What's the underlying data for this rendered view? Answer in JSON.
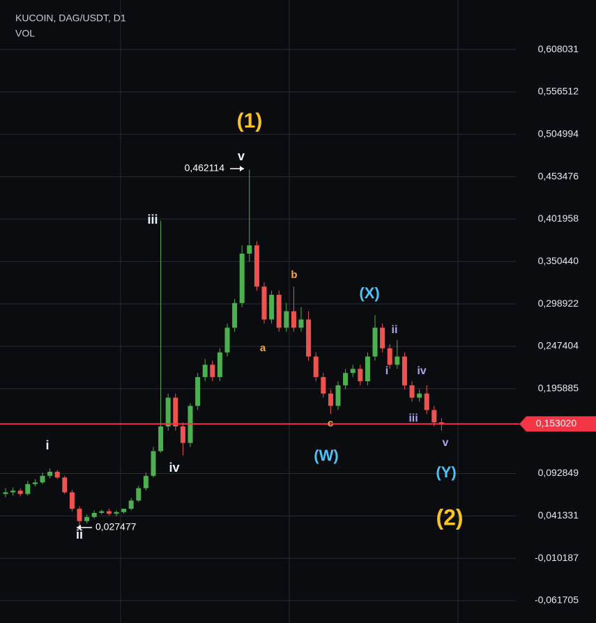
{
  "chart_data": {
    "type": "candlestick",
    "title": "KUCOIN, DAG/USDT, D1",
    "subtitle": "VOL",
    "open": [
      0.068,
      0.07,
      0.072,
      0.068,
      0.08,
      0.082,
      0.09,
      0.095,
      0.088,
      0.07,
      0.05,
      0.035,
      0.04,
      0.045,
      0.047,
      0.044,
      0.046,
      0.05,
      0.06,
      0.075,
      0.09,
      0.12,
      0.15,
      0.185,
      0.15,
      0.13,
      0.175,
      0.21,
      0.225,
      0.21,
      0.24,
      0.27,
      0.3,
      0.36,
      0.37,
      0.32,
      0.28,
      0.31,
      0.27,
      0.29,
      0.27,
      0.28,
      0.235,
      0.21,
      0.19,
      0.175,
      0.2,
      0.215,
      0.22,
      0.205,
      0.235,
      0.27,
      0.245,
      0.225,
      0.235,
      0.2,
      0.185,
      0.19,
      0.17,
      0.155
    ],
    "high": [
      0.075,
      0.076,
      0.075,
      0.084,
      0.086,
      0.094,
      0.099,
      0.097,
      0.09,
      0.073,
      0.053,
      0.043,
      0.048,
      0.049,
      0.05,
      0.048,
      0.05,
      0.063,
      0.078,
      0.094,
      0.125,
      0.4,
      0.19,
      0.19,
      0.155,
      0.178,
      0.215,
      0.232,
      0.23,
      0.245,
      0.275,
      0.305,
      0.37,
      0.462114,
      0.375,
      0.325,
      0.315,
      0.315,
      0.3,
      0.32,
      0.295,
      0.29,
      0.24,
      0.215,
      0.195,
      0.205,
      0.22,
      0.225,
      0.225,
      0.24,
      0.285,
      0.275,
      0.25,
      0.255,
      0.24,
      0.205,
      0.195,
      0.2,
      0.175,
      0.16
    ],
    "low": [
      0.064,
      0.066,
      0.065,
      0.066,
      0.077,
      0.08,
      0.087,
      0.086,
      0.068,
      0.047,
      0.027477,
      0.032,
      0.038,
      0.043,
      0.042,
      0.041,
      0.044,
      0.048,
      0.058,
      0.072,
      0.088,
      0.118,
      0.145,
      0.145,
      0.115,
      0.125,
      0.17,
      0.205,
      0.205,
      0.205,
      0.235,
      0.265,
      0.295,
      0.35,
      0.315,
      0.275,
      0.275,
      0.265,
      0.265,
      0.265,
      0.265,
      0.23,
      0.205,
      0.185,
      0.165,
      0.17,
      0.195,
      0.21,
      0.2,
      0.2,
      0.23,
      0.24,
      0.22,
      0.22,
      0.195,
      0.18,
      0.18,
      0.165,
      0.15,
      0.145
    ],
    "close": [
      0.07,
      0.072,
      0.068,
      0.08,
      0.082,
      0.09,
      0.095,
      0.088,
      0.07,
      0.05,
      0.035,
      0.04,
      0.045,
      0.047,
      0.044,
      0.046,
      0.05,
      0.06,
      0.075,
      0.09,
      0.12,
      0.15,
      0.185,
      0.15,
      0.13,
      0.175,
      0.21,
      0.225,
      0.21,
      0.24,
      0.27,
      0.3,
      0.36,
      0.37,
      0.32,
      0.28,
      0.31,
      0.27,
      0.29,
      0.27,
      0.28,
      0.235,
      0.21,
      0.19,
      0.175,
      0.2,
      0.215,
      0.22,
      0.205,
      0.235,
      0.27,
      0.245,
      0.225,
      0.235,
      0.2,
      0.185,
      0.19,
      0.17,
      0.155,
      0.153
    ],
    "up_color": "#4caf50",
    "down_color": "#ef5350",
    "ylim": [
      -0.0888,
      0.6682
    ],
    "yticks": [
      {
        "value": 0.608031,
        "label": "0,608031"
      },
      {
        "value": 0.556512,
        "label": "0,556512"
      },
      {
        "value": 0.504994,
        "label": "0,504994"
      },
      {
        "value": 0.453476,
        "label": "0,453476"
      },
      {
        "value": 0.401958,
        "label": "0,401958"
      },
      {
        "value": 0.35044,
        "label": "0,350440"
      },
      {
        "value": 0.298922,
        "label": "0,298922"
      },
      {
        "value": 0.247404,
        "label": "0,247404"
      },
      {
        "value": 0.195885,
        "label": "0,195885"
      },
      {
        "value": 0.092849,
        "label": "0,092849"
      },
      {
        "value": 0.041331,
        "label": "0,041331"
      },
      {
        "value": -0.010187,
        "label": "-0,010187"
      },
      {
        "value": -0.061705,
        "label": "-0,061705"
      }
    ],
    "grid": true,
    "last_price": {
      "value": 0.15302,
      "label": "0,153020",
      "color": "#f23645"
    },
    "price_markers": [
      {
        "value": 0.462114,
        "label": "0,462114"
      },
      {
        "value": 0.027477,
        "label": "0,027477"
      }
    ],
    "annotations": [
      {
        "text": "(1)",
        "color": "#f7c325"
      },
      {
        "text": "v",
        "color": "#e8f4ff"
      },
      {
        "text": "iii",
        "color": "#e8f4ff"
      },
      {
        "text": "i",
        "color": "#e8f4ff"
      },
      {
        "text": "ii",
        "color": "#e8f4ff"
      },
      {
        "text": "iv",
        "color": "#e8f4ff"
      },
      {
        "text": "a",
        "color": "#f5a742"
      },
      {
        "text": "b",
        "color": "#f5a742"
      },
      {
        "text": "c",
        "color": "#f5a742"
      },
      {
        "text": "(W)",
        "color": "#4fc3f7"
      },
      {
        "text": "(X)",
        "color": "#4fc3f7"
      },
      {
        "text": "i",
        "color": "#b0a4f0"
      },
      {
        "text": "ii",
        "color": "#b0a4f0"
      },
      {
        "text": "iii",
        "color": "#b0a4f0"
      },
      {
        "text": "iv",
        "color": "#b0a4f0"
      },
      {
        "text": "v",
        "color": "#b0a4f0"
      },
      {
        "text": "(Y)",
        "color": "#4fc3f7"
      },
      {
        "text": "(2)",
        "color": "#f7c325"
      }
    ]
  }
}
